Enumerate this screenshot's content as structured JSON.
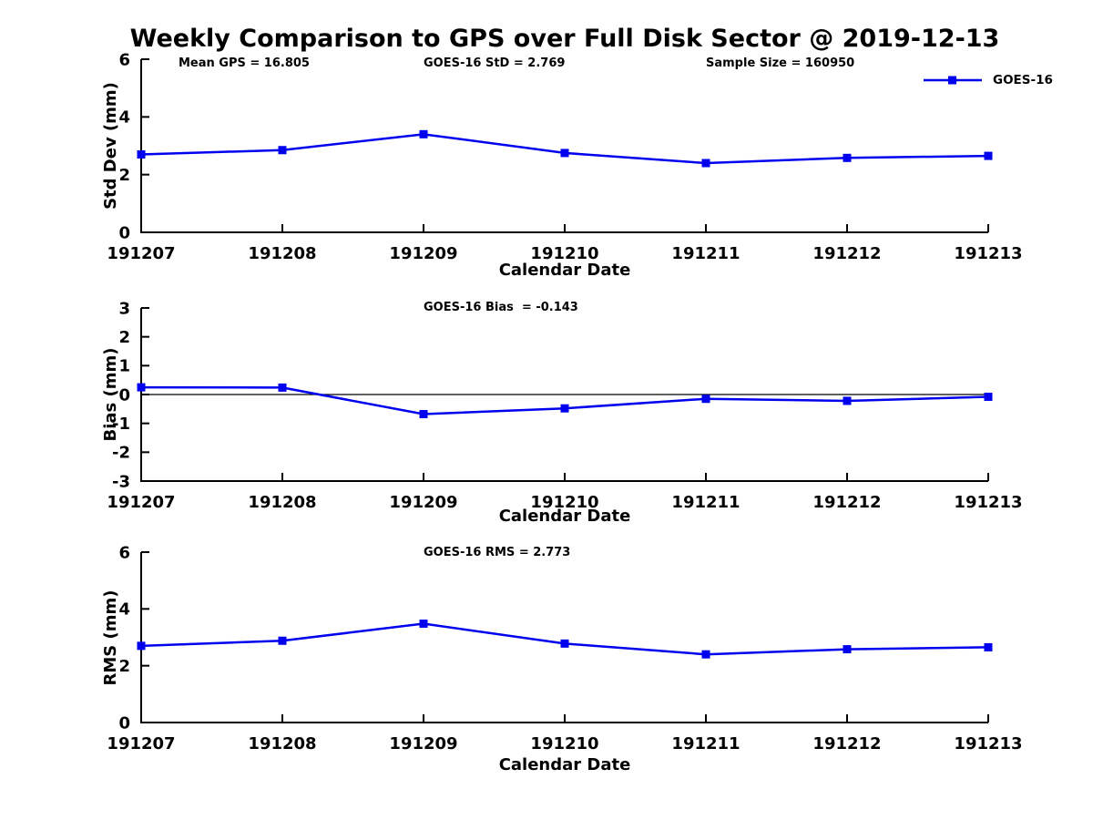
{
  "figure": {
    "title": "Weekly Comparison to GPS over Full Disk Sector @ 2019-12-13",
    "legend": {
      "label": "GOES-16",
      "position": "top-right"
    },
    "colors": {
      "line": "#0000ee",
      "marker": "#0000ee",
      "axis": "#000000",
      "text": "#000000",
      "background": "#ffffff"
    }
  },
  "chart_data": [
    {
      "type": "line",
      "name": "std-dev",
      "ylabel": "Std Dev (mm)",
      "xlabel": "Calendar Date",
      "x": [
        "191207",
        "191208",
        "191209",
        "191210",
        "191211",
        "191212",
        "191213"
      ],
      "values": [
        2.7,
        2.85,
        3.4,
        2.75,
        2.4,
        2.58,
        2.65
      ],
      "ylim": [
        0,
        6
      ],
      "yticks": [
        0,
        2,
        4,
        6
      ],
      "grid": false,
      "legend": {
        "label": "GOES-16",
        "position": "top-right"
      },
      "annotations": [
        "Mean GPS = 16.805",
        "GOES-16 StD = 2.769",
        "Sample Size = 160950"
      ],
      "stats": {
        "mean_gps": 16.805,
        "goes16_std": 2.769,
        "sample_size": 160950
      }
    },
    {
      "type": "line",
      "name": "bias",
      "ylabel": "Bias (mm)",
      "xlabel": "Calendar Date",
      "x": [
        "191207",
        "191208",
        "191209",
        "191210",
        "191211",
        "191212",
        "191213"
      ],
      "values": [
        0.25,
        0.24,
        -0.68,
        -0.48,
        -0.15,
        -0.22,
        -0.08
      ],
      "ylim": [
        -3,
        3
      ],
      "yticks": [
        -3,
        -2,
        -1,
        0,
        1,
        2,
        3
      ],
      "grid": false,
      "zero_line": true,
      "annotations": [
        "GOES-16 Bias  = -0.143"
      ],
      "stats": {
        "goes16_bias": -0.143
      }
    },
    {
      "type": "line",
      "name": "rms",
      "ylabel": "RMS (mm)",
      "xlabel": "Calendar Date",
      "x": [
        "191207",
        "191208",
        "191209",
        "191210",
        "191211",
        "191212",
        "191213"
      ],
      "values": [
        2.7,
        2.88,
        3.48,
        2.78,
        2.4,
        2.58,
        2.65
      ],
      "ylim": [
        0,
        6
      ],
      "yticks": [
        0,
        2,
        4,
        6
      ],
      "grid": false,
      "annotations": [
        "GOES-16 RMS = 2.773"
      ],
      "stats": {
        "goes16_rms": 2.773
      }
    }
  ]
}
